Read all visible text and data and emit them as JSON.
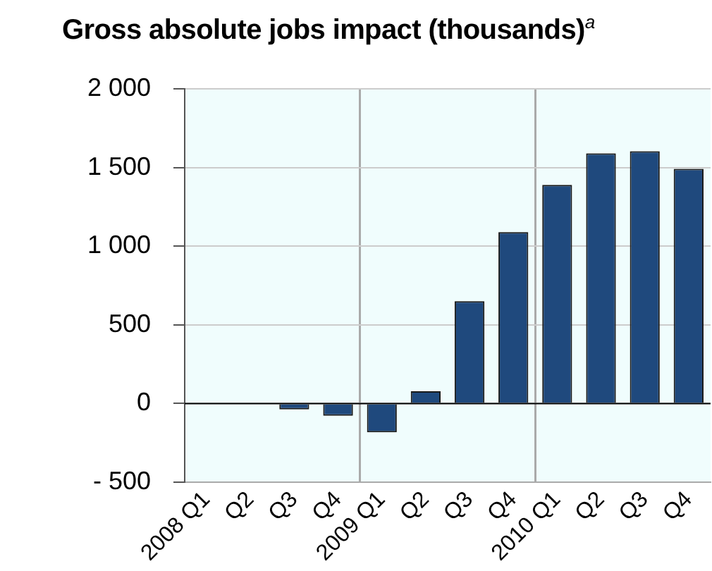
{
  "chart_data": {
    "type": "bar",
    "title": "Gross absolute jobs impact (thousands)$^{a}$",
    "categories": [
      "2008 Q1",
      "Q2",
      "Q3",
      "Q4",
      "2009 Q1",
      "Q2",
      "Q3",
      "Q4",
      "2010 Q1",
      "Q2",
      "Q3",
      "Q4"
    ],
    "values": [
      0,
      -5,
      -37,
      -78,
      -183,
      78,
      650,
      1090,
      1390,
      1590,
      1604,
      1492
    ],
    "color": "#1f497d",
    "ylim": [
      -500,
      2000
    ],
    "yticks": [
      {
        "value": -500,
        "label": "- 500"
      },
      0,
      500,
      {
        "value": 1000,
        "label": "1 000"
      },
      {
        "value": 1500,
        "label": "1 500"
      },
      {
        "value": 2000,
        "label": "2 000"
      }
    ],
    "grid": true
  }
}
